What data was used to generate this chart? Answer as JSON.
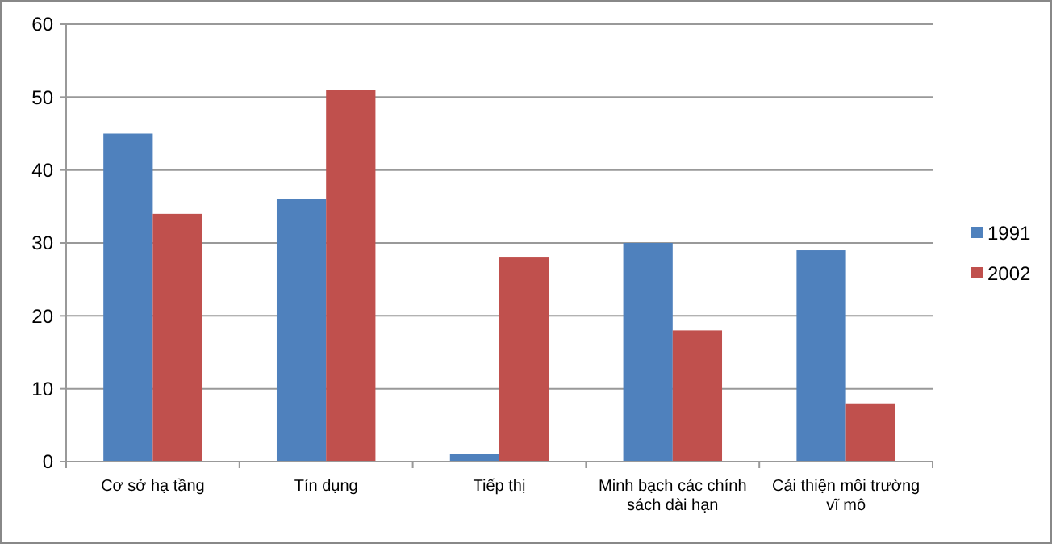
{
  "chart_data": {
    "type": "bar",
    "categories": [
      "Cơ sở hạ tầng",
      "Tín dụng",
      "Tiếp thị",
      "Minh bạch các chính sách dài hạn",
      "Cải thiện môi trường vĩ mô"
    ],
    "series": [
      {
        "name": "1991",
        "color": "#4f81bd",
        "values": [
          45,
          36,
          1,
          30,
          29
        ]
      },
      {
        "name": "2002",
        "color": "#c0504d",
        "values": [
          34,
          51,
          28,
          18,
          8
        ]
      }
    ],
    "ylim": [
      0,
      60
    ],
    "yticks": [
      0,
      10,
      20,
      30,
      40,
      50,
      60
    ],
    "grid": "y",
    "legend": "right"
  }
}
